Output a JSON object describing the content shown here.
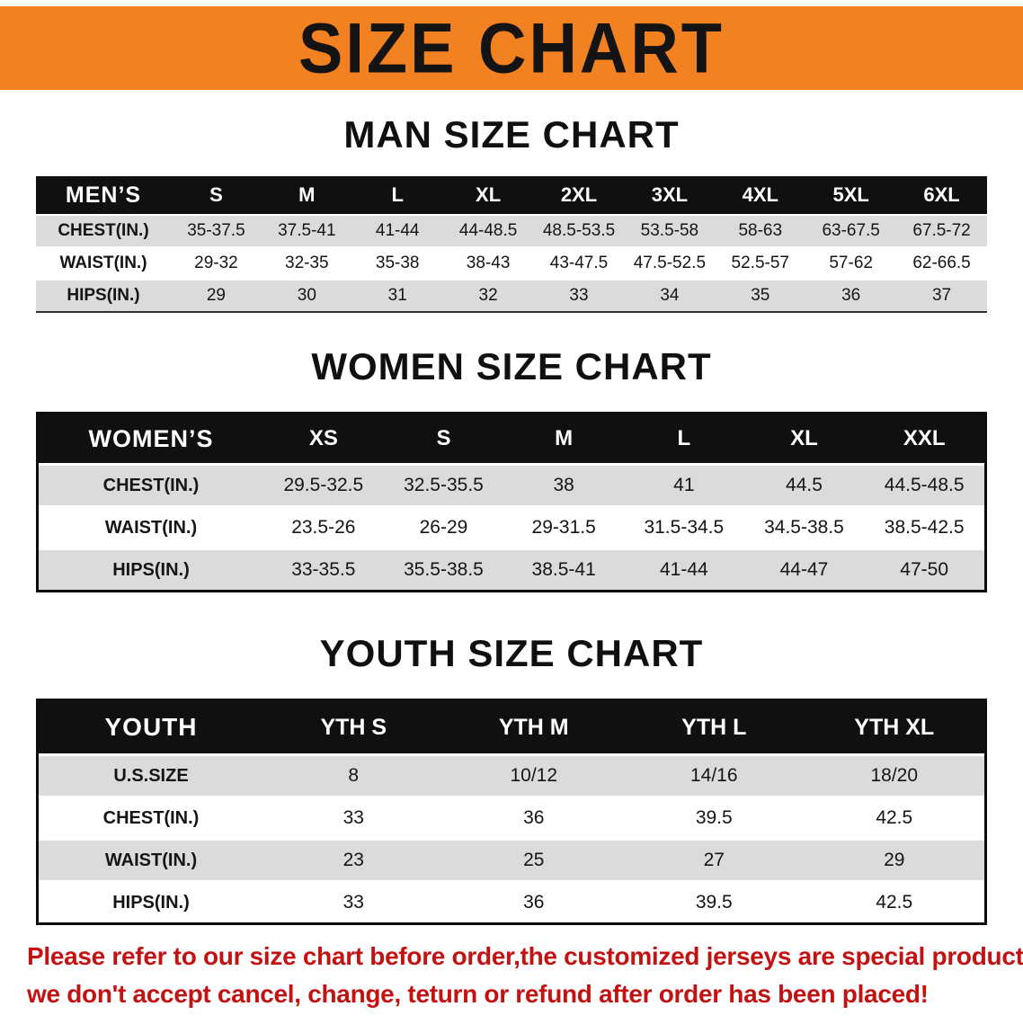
{
  "banner": {
    "title": "SIZE CHART",
    "bg_color": "#F18121"
  },
  "sections": [
    {
      "heading": "MAN SIZE CHART",
      "table": {
        "header_label": "MEN’S",
        "columns": [
          "S",
          "M",
          "L",
          "XL",
          "2XL",
          "3XL",
          "4XL",
          "5XL",
          "6XL"
        ],
        "rows": [
          {
            "label": "CHEST(IN.)",
            "values": [
              "35-37.5",
              "37.5-41",
              "41-44",
              "44-48.5",
              "48.5-53.5",
              "53.5-58",
              "58-63",
              "63-67.5",
              "67.5-72"
            ]
          },
          {
            "label": "WAIST(IN.)",
            "values": [
              "29-32",
              "32-35",
              "35-38",
              "38-43",
              "43-47.5",
              "47.5-52.5",
              "52.5-57",
              "57-62",
              "62-66.5"
            ]
          },
          {
            "label": "HIPS(IN.)",
            "values": [
              "29",
              "30",
              "31",
              "32",
              "33",
              "34",
              "35",
              "36",
              "37"
            ]
          }
        ]
      }
    },
    {
      "heading": "WOMEN SIZE CHART",
      "table": {
        "header_label": "WOMEN’S",
        "columns": [
          "XS",
          "S",
          "M",
          "L",
          "XL",
          "XXL"
        ],
        "rows": [
          {
            "label": "CHEST(IN.)",
            "values": [
              "29.5-32.5",
              "32.5-35.5",
              "38",
              "41",
              "44.5",
              "44.5-48.5"
            ]
          },
          {
            "label": "WAIST(IN.)",
            "values": [
              "23.5-26",
              "26-29",
              "29-31.5",
              "31.5-34.5",
              "34.5-38.5",
              "38.5-42.5"
            ]
          },
          {
            "label": "HIPS(IN.)",
            "values": [
              "33-35.5",
              "35.5-38.5",
              "38.5-41",
              "41-44",
              "44-47",
              "47-50"
            ]
          }
        ]
      }
    },
    {
      "heading": "YOUTH SIZE CHART",
      "table": {
        "header_label": "YOUTH",
        "columns": [
          "YTH S",
          "YTH M",
          "YTH L",
          "YTH XL"
        ],
        "rows": [
          {
            "label": "U.S.SIZE",
            "values": [
              "8",
              "10/12",
              "14/16",
              "18/20"
            ]
          },
          {
            "label": "CHEST(IN.)",
            "values": [
              "33",
              "36",
              "39.5",
              "42.5"
            ]
          },
          {
            "label": "WAIST(IN.)",
            "values": [
              "23",
              "25",
              "27",
              "29"
            ]
          },
          {
            "label": "HIPS(IN.)",
            "values": [
              "33",
              "36",
              "39.5",
              "42.5"
            ]
          }
        ]
      }
    }
  ],
  "disclaimer": {
    "line1": "Please refer to our size chart before order,the customized jerseys are special products,",
    "line2": "we don't accept cancel, change, teturn or refund after order has been placed!",
    "color": "#C31212"
  }
}
